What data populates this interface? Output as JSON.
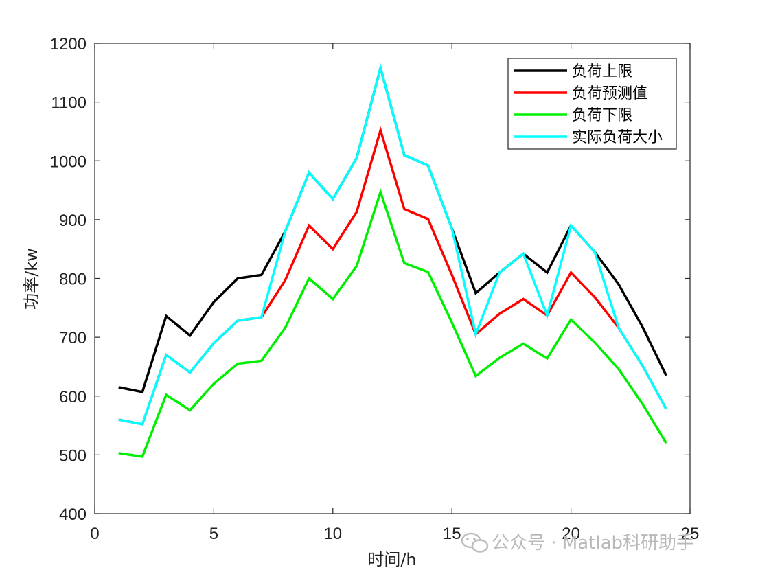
{
  "chart_data": {
    "type": "line",
    "xlabel": "时间/h",
    "ylabel": "功率/kw",
    "xlim": [
      0,
      25
    ],
    "ylim": [
      400,
      1200
    ],
    "xticks": [
      0,
      5,
      10,
      15,
      20,
      25
    ],
    "yticks": [
      400,
      500,
      600,
      700,
      800,
      900,
      1000,
      1100,
      1200
    ],
    "grid": false,
    "legend_position": "top-right",
    "x": [
      1,
      2,
      3,
      4,
      5,
      6,
      7,
      8,
      9,
      10,
      11,
      12,
      13,
      14,
      15,
      16,
      17,
      18,
      19,
      20,
      21,
      22,
      23,
      24
    ],
    "series": [
      {
        "name": "负荷上限",
        "color": "#000000",
        "values": [
          615,
          607,
          736,
          703,
          760,
          800,
          806,
          880,
          980,
          935,
          1005,
          1158,
          1010,
          992,
          885,
          775,
          810,
          842,
          810,
          890,
          845,
          790,
          718,
          635
        ]
      },
      {
        "name": "负荷预测值",
        "color": "#ff0000",
        "values": [
          560,
          552,
          670,
          640,
          690,
          728,
          734,
          797,
          890,
          850,
          913,
          1052,
          918,
          901,
          806,
          705,
          740,
          765,
          737,
          810,
          768,
          716,
          652,
          578
        ]
      },
      {
        "name": "负荷下限",
        "color": "#00ee00",
        "values": [
          503,
          497,
          602,
          576,
          621,
          655,
          660,
          716,
          800,
          765,
          821,
          947,
          826,
          811,
          725,
          634,
          665,
          689,
          664,
          730,
          691,
          646,
          587,
          520
        ]
      },
      {
        "name": "实际负荷大小",
        "color": "#00ffff",
        "values": [
          560,
          552,
          670,
          640,
          690,
          728,
          734,
          880,
          980,
          935,
          1005,
          1158,
          1010,
          992,
          885,
          705,
          810,
          842,
          737,
          890,
          845,
          716,
          652,
          578
        ]
      }
    ]
  },
  "watermark": {
    "text": "公众号 · Matlab科研助手",
    "icon": "wechat-icon"
  }
}
